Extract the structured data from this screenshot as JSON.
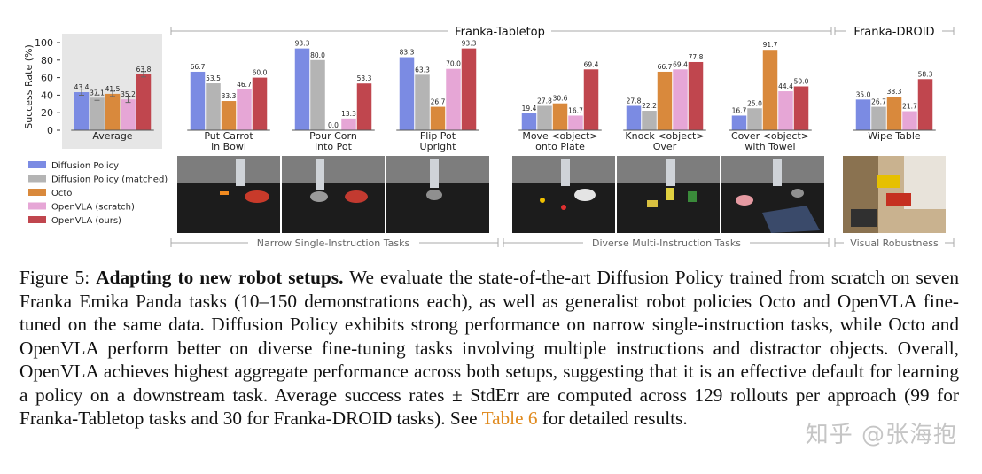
{
  "chart_data": {
    "type": "bar",
    "ylabel": "Success Rate (%)",
    "ylim": [
      0,
      100
    ],
    "yticks": [
      0,
      20,
      40,
      60,
      80,
      100
    ],
    "group_headers": [
      {
        "name": "Franka-Tabletop"
      },
      {
        "name": "Franka-DROID"
      }
    ],
    "bottom_headers": [
      {
        "name": "Narrow Single-Instruction Tasks"
      },
      {
        "name": "Diverse Multi-Instruction Tasks"
      },
      {
        "name": "Visual Robustness"
      }
    ],
    "series": [
      {
        "name": "Diffusion Policy",
        "color": "#7b8be3"
      },
      {
        "name": "Diffusion Policy (matched)",
        "color": "#b4b4b4"
      },
      {
        "name": "Octo",
        "color": "#d9893c"
      },
      {
        "name": "OpenVLA (scratch)",
        "color": "#e6a6d6"
      },
      {
        "name": "OpenVLA (ours)",
        "color": "#c0464e"
      }
    ],
    "categories": [
      {
        "label": [
          "Average"
        ],
        "values": [
          43.4,
          37.1,
          41.5,
          35.2,
          63.8
        ],
        "labels": [
          "43.4",
          "37.1",
          "41.5",
          "35.2",
          "63.8"
        ],
        "error": [
          3.5,
          3.0,
          3.0,
          3.5,
          3.0
        ]
      },
      {
        "label": [
          "Put Carrot",
          "in Bowl"
        ],
        "values": [
          66.7,
          53.5,
          33.3,
          46.7,
          60.0
        ],
        "labels": [
          "66.7",
          "53.5",
          "33.3",
          "46.7",
          "60.0"
        ]
      },
      {
        "label": [
          "Pour Corn",
          "into Pot"
        ],
        "values": [
          93.3,
          80.0,
          0.0,
          13.3,
          53.3
        ],
        "labels": [
          "93.3",
          "80.0",
          "0.0",
          "13.3",
          "53.3"
        ]
      },
      {
        "label": [
          "Flip Pot",
          "Upright"
        ],
        "values": [
          83.3,
          63.3,
          26.7,
          70.0,
          93.3
        ],
        "labels": [
          "83.3",
          "63.3",
          "26.7",
          "70.0",
          "93.3"
        ]
      },
      {
        "label": [
          "Move <object>",
          "onto Plate"
        ],
        "values": [
          19.4,
          27.8,
          30.6,
          16.7,
          69.4
        ],
        "labels": [
          "19.4",
          "27.8",
          "30.6",
          "16.7",
          "69.4"
        ]
      },
      {
        "label": [
          "Knock <object>",
          "Over"
        ],
        "values": [
          27.8,
          22.2,
          66.7,
          69.4,
          77.8
        ],
        "labels": [
          "27.8",
          "22.2",
          "66.7",
          "69.4",
          "77.8"
        ]
      },
      {
        "label": [
          "Cover <object>",
          "with Towel"
        ],
        "values": [
          16.7,
          25.0,
          91.7,
          44.4,
          50.0
        ],
        "labels": [
          "16.7",
          "25.0",
          "91.7",
          "44.4",
          "50.0"
        ]
      },
      {
        "label": [
          "Wipe Table"
        ],
        "values": [
          35.0,
          26.7,
          38.3,
          21.7,
          58.3
        ],
        "labels": [
          "35.0",
          "26.7",
          "38.3",
          "21.7",
          "58.3"
        ]
      }
    ]
  },
  "caption": {
    "figure_label": "Figure 5:",
    "bold_title": "Adapting to new robot setups.",
    "body_part1": "We evaluate the state-of-the-art Diffusion Policy trained from scratch on seven Franka Emika Panda tasks (10–150 demonstrations each), as well as generalist robot policies Octo and OpenVLA fine-tuned on the same data. Diffusion Policy exhibits strong performance on narrow single-instruction tasks, while Octo and OpenVLA perform better on diverse fine-tuning tasks involving multiple instructions and distractor objects. Overall, OpenVLA achieves highest aggregate performance across both setups, suggesting that it is an effective default for learning a policy on a downstream task. Average success rates ± StdErr are computed across 129 rollouts per approach (99 for Franka-Tabletop tasks and 30 for Franka-DROID tasks). See",
    "table_link": "Table 6",
    "body_part2": "for detailed results."
  },
  "watermark": "知乎 @张海抱"
}
